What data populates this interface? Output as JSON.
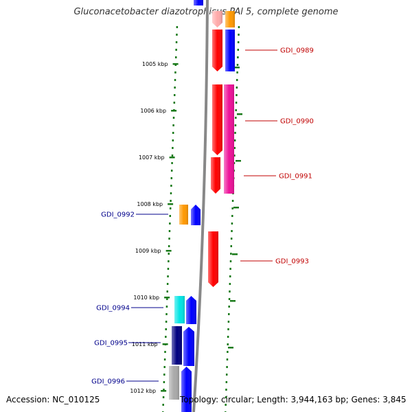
{
  "title": "Gluconacetobacter diazotrophicus PAl 5, complete genome",
  "footer": {
    "accession": "Accession: NC_010125",
    "topology": "Topology: circular; Length: 3,944,163 bp; Genes: 3,845"
  },
  "colors": {
    "backbone": "#888888",
    "dots": "#1a7a1a",
    "tick": "#1a7a1a",
    "label_forward": "#c00000",
    "label_reverse": "#00008b",
    "red": "#ff0000",
    "blue": "#0000ff",
    "navy": "#00007f",
    "orange": "#ff9900",
    "magenta": "#ee1199",
    "cyan": "#00e5e5",
    "grey": "#a9a9a9",
    "pink": "#ffaaaa"
  },
  "kbp_labels": [
    "1005 kbp",
    "1006 kbp",
    "1007 kbp",
    "1008 kbp",
    "1009 kbp",
    "1010 kbp",
    "1011 kbp",
    "1012 kbp"
  ],
  "gene_labels": [
    {
      "name": "GDI_0989",
      "strand": "forward"
    },
    {
      "name": "GDI_0990",
      "strand": "forward"
    },
    {
      "name": "GDI_0991",
      "strand": "forward"
    },
    {
      "name": "GDI_0992",
      "strand": "reverse"
    },
    {
      "name": "GDI_0993",
      "strand": "forward"
    },
    {
      "name": "GDI_0994",
      "strand": "reverse"
    },
    {
      "name": "GDI_0995",
      "strand": "reverse"
    },
    {
      "name": "GDI_0996",
      "strand": "reverse"
    }
  ]
}
